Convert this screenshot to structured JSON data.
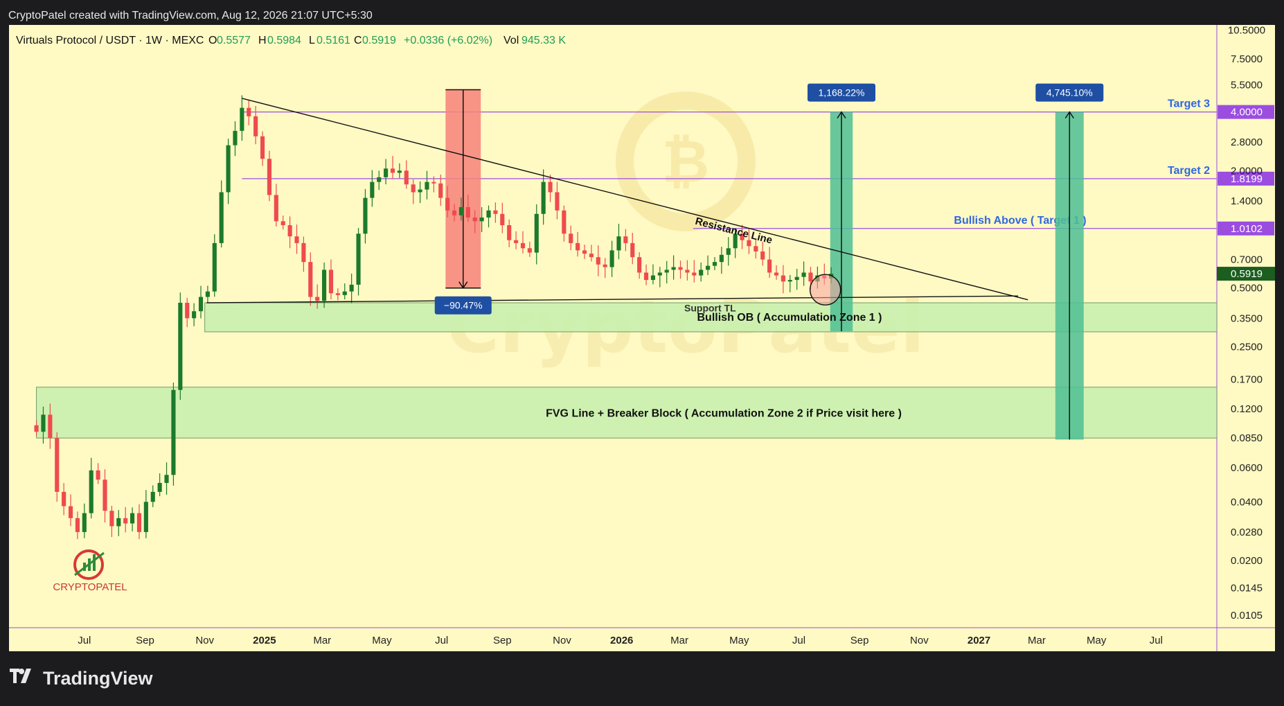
{
  "header": {
    "credit": "CryptoPatel created with TradingView.com, Aug 12, 2026 21:07 UTC+5:30"
  },
  "legend": {
    "symbol": "Virtuals Protocol / USDT · 1W · MEXC",
    "o_label": "O",
    "o_value": "0.5577",
    "h_label": "H",
    "h_value": "0.5984",
    "l_label": "L",
    "l_value": "0.5161",
    "c_label": "C",
    "c_value": "0.5919",
    "change": "+0.0336 (+6.02%)",
    "vol_label": "Vol",
    "vol_value": "945.33 K"
  },
  "watermark": "CryptoPatel",
  "logo_text": "CRYPTOPATEL",
  "footer": {
    "brand": "TradingView"
  },
  "colors": {
    "background": "#fff9c4",
    "up": "#1b7a2b",
    "down": "#ef4a4f",
    "zone": "#c9efaf",
    "target_box": "#4dbf94",
    "drop_box": "#f7827a",
    "label_box": "#1e4fa3",
    "target_text": "#2f67e0",
    "purple_line": "#9b4de0",
    "last_price": "#1b5e20"
  },
  "chart_data": {
    "type": "candlestick",
    "scale": "log",
    "timeframe": "1W",
    "last_price": 0.5919,
    "ylim": [
      0.0095,
      11.0
    ],
    "xlim": [
      "2024-04-15",
      "2027-09-01"
    ],
    "y_ticks": [
      "10.5000",
      "7.5000",
      "5.5000",
      "2.8000",
      "2.0000",
      "1.4000",
      "0.7000",
      "0.5000",
      "0.3500",
      "0.2500",
      "0.1700",
      "0.1200",
      "0.0850",
      "0.0600",
      "0.0400",
      "0.0280",
      "0.0200",
      "0.0145",
      "0.0105"
    ],
    "y_tick_values": [
      10.5,
      7.5,
      5.5,
      2.8,
      2.0,
      1.4,
      0.7,
      0.5,
      0.35,
      0.25,
      0.17,
      0.12,
      0.085,
      0.06,
      0.04,
      0.028,
      0.02,
      0.0145,
      0.0105
    ],
    "x_ticks": [
      {
        "label": "Jul",
        "date": "2024-07-01",
        "bold": false
      },
      {
        "label": "Sep",
        "date": "2024-09-01",
        "bold": false
      },
      {
        "label": "Nov",
        "date": "2024-11-01",
        "bold": false
      },
      {
        "label": "2025",
        "date": "2025-01-01",
        "bold": true
      },
      {
        "label": "Mar",
        "date": "2025-03-01",
        "bold": false
      },
      {
        "label": "May",
        "date": "2025-05-01",
        "bold": false
      },
      {
        "label": "Jul",
        "date": "2025-07-01",
        "bold": false
      },
      {
        "label": "Sep",
        "date": "2025-09-01",
        "bold": false
      },
      {
        "label": "Nov",
        "date": "2025-11-01",
        "bold": false
      },
      {
        "label": "2026",
        "date": "2026-01-01",
        "bold": true
      },
      {
        "label": "Mar",
        "date": "2026-03-01",
        "bold": false
      },
      {
        "label": "May",
        "date": "2026-05-01",
        "bold": false
      },
      {
        "label": "Jul",
        "date": "2026-07-01",
        "bold": false
      },
      {
        "label": "Sep",
        "date": "2026-09-01",
        "bold": false
      },
      {
        "label": "Nov",
        "date": "2026-11-01",
        "bold": false
      },
      {
        "label": "2027",
        "date": "2027-01-01",
        "bold": true
      },
      {
        "label": "Mar",
        "date": "2027-03-01",
        "bold": false
      },
      {
        "label": "May",
        "date": "2027-05-01",
        "bold": false
      },
      {
        "label": "Jul",
        "date": "2027-07-01",
        "bold": false
      }
    ],
    "closes_start_date": "2024-05-13",
    "closes": [
      0.0915,
      0.112,
      0.085,
      0.045,
      0.038,
      0.033,
      0.028,
      0.035,
      0.058,
      0.052,
      0.036,
      0.03,
      0.033,
      0.031,
      0.035,
      0.028,
      0.04,
      0.045,
      0.05,
      0.055,
      0.15,
      0.42,
      0.35,
      0.38,
      0.45,
      0.48,
      0.85,
      1.55,
      2.7,
      3.2,
      4.2,
      3.8,
      3.0,
      2.3,
      1.5,
      1.1,
      1.05,
      0.92,
      0.85,
      0.68,
      0.45,
      0.43,
      0.62,
      0.47,
      0.46,
      0.48,
      0.52,
      0.95,
      1.45,
      1.75,
      1.85,
      2.05,
      1.95,
      2.0,
      1.7,
      1.55,
      1.6,
      1.75,
      1.72,
      1.45,
      1.25,
      1.18,
      1.3,
      1.15,
      1.1,
      1.15,
      1.25,
      1.2,
      1.05,
      0.88,
      0.85,
      0.8,
      0.76,
      1.2,
      1.75,
      1.55,
      1.25,
      0.95,
      0.85,
      0.78,
      0.75,
      0.72,
      0.66,
      0.64,
      0.78,
      0.92,
      0.85,
      0.72,
      0.6,
      0.55,
      0.58,
      0.6,
      0.62,
      0.64,
      0.62,
      0.6,
      0.58,
      0.62,
      0.65,
      0.68,
      0.74,
      0.8,
      0.95,
      0.88,
      0.82,
      0.77,
      0.7,
      0.6,
      0.58,
      0.54,
      0.55,
      0.57,
      0.6,
      0.54,
      0.58,
      0.56,
      0.5919
    ],
    "annotations": {
      "resistance_line": {
        "label": "Resistance Line",
        "start": [
          "2024-12-09",
          4.7
        ],
        "end": [
          "2027-02-20",
          0.435
        ]
      },
      "support_line": {
        "label": "Support TL",
        "start": [
          "2024-11-03",
          0.42
        ],
        "end": [
          "2027-02-10",
          0.455
        ]
      },
      "zone1": {
        "label": "Bullish OB ( Accumulation Zone 1 )",
        "from": "2024-11-01",
        "low": 0.298,
        "high": 0.42
      },
      "zone2": {
        "label": "FVG Line + Breaker Block ( Accumulation Zone 2 if Price visit here )",
        "from": "2024-05-13",
        "low": 0.085,
        "high": 0.155
      },
      "drop": {
        "label": "−90.47%",
        "from": "2025-07-05",
        "to": "2025-08-10",
        "high": 5.2,
        "low": 0.5
      },
      "measure_1": {
        "label": "1,168.22%",
        "from": "2026-08-02",
        "to": "2026-08-25",
        "low": 0.3,
        "high": 4.0
      },
      "measure_2": {
        "label": "4,745.10%",
        "from": "2027-03-20",
        "to": "2027-04-18",
        "low": 0.0835,
        "high": 4.0
      },
      "levels": [
        {
          "label": "Target 3",
          "price_label": "4.0000",
          "value": 4.0
        },
        {
          "label": "Target 2",
          "price_label": "1.8199",
          "value": 1.8199
        },
        {
          "label": "Bullish Above ( Target 1 )",
          "price_label": "1.0102",
          "value": 1.0102
        }
      ],
      "circle": {
        "date": "2026-07-28",
        "value": 0.49
      }
    }
  }
}
